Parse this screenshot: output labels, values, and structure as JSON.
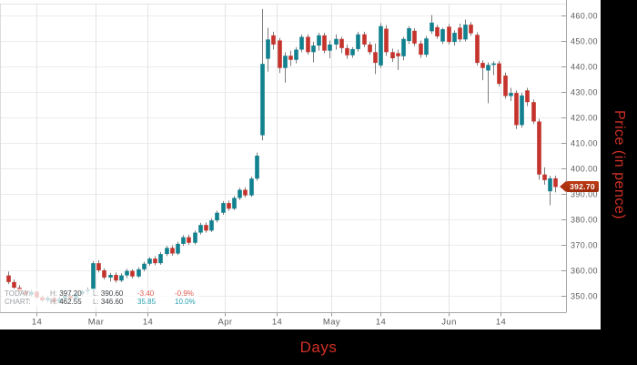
{
  "chart_data": {
    "type": "candlestick",
    "xlabel": "Days",
    "ylabel": "Price (in pence)",
    "ylim": [
      341.5,
      466
    ],
    "grid": true,
    "y_ticks": [
      350,
      360,
      370,
      380,
      390,
      400,
      410,
      420,
      430,
      440,
      450,
      460
    ],
    "x_ticks": [
      {
        "label": "14",
        "i": 5.0
      },
      {
        "label": "Mar",
        "i": 15.5
      },
      {
        "label": "14",
        "i": 24.7
      },
      {
        "label": "Apr",
        "i": 38.4
      },
      {
        "label": "14",
        "i": 47.6
      },
      {
        "label": "May",
        "i": 57.2
      },
      {
        "label": "14",
        "i": 66.0
      },
      {
        "label": "Jun",
        "i": 78.1
      },
      {
        "label": "14",
        "i": 87.3
      }
    ],
    "last_price": "392.70",
    "colors": {
      "up": "#12818f",
      "down": "#c5332d",
      "wick": "#7d7d7d",
      "axis_title": "#cf3126",
      "tag": "#b02f10"
    },
    "candles": [
      [
        358.0,
        359.5,
        354.6,
        355.4
      ],
      [
        355.4,
        356.4,
        352.4,
        353.2
      ],
      [
        353.2,
        354.2,
        351.0,
        351.8
      ],
      [
        351.8,
        352.6,
        349.8,
        350.4
      ],
      [
        350.4,
        352.4,
        349.6,
        351.6
      ],
      [
        351.6,
        352.2,
        348.8,
        349.4
      ],
      [
        349.4,
        350.2,
        347.6,
        348.2
      ],
      [
        348.2,
        350.0,
        347.2,
        349.2
      ],
      [
        349.2,
        349.8,
        346.6,
        347.4
      ],
      [
        347.4,
        349.8,
        347.0,
        349.0
      ],
      [
        349.0,
        350.6,
        348.2,
        350.0
      ],
      [
        350.0,
        350.8,
        348.4,
        349.0
      ],
      [
        349.0,
        351.4,
        348.6,
        350.8
      ],
      [
        350.8,
        352.4,
        350.0,
        351.8
      ],
      [
        351.8,
        353.2,
        350.6,
        352.4
      ],
      [
        352.4,
        363.6,
        351.8,
        362.8
      ],
      [
        362.8,
        364.0,
        359.2,
        360.0
      ],
      [
        360.0,
        360.8,
        356.4,
        357.2
      ],
      [
        357.2,
        359.0,
        355.6,
        358.2
      ],
      [
        358.2,
        359.2,
        355.2,
        356.0
      ],
      [
        356.0,
        358.8,
        355.4,
        358.0
      ],
      [
        358.0,
        360.6,
        357.0,
        359.8
      ],
      [
        359.8,
        360.4,
        356.8,
        357.6
      ],
      [
        357.6,
        361.2,
        357.0,
        360.4
      ],
      [
        360.4,
        363.4,
        359.6,
        362.6
      ],
      [
        362.6,
        365.2,
        361.8,
        364.6
      ],
      [
        364.6,
        365.6,
        362.0,
        362.8
      ],
      [
        362.8,
        367.2,
        362.2,
        366.4
      ],
      [
        366.4,
        369.6,
        365.6,
        368.8
      ],
      [
        368.8,
        369.8,
        365.8,
        366.6
      ],
      [
        366.6,
        371.2,
        366.0,
        370.4
      ],
      [
        370.4,
        373.8,
        369.6,
        373.0
      ],
      [
        373.0,
        374.0,
        370.0,
        370.8
      ],
      [
        370.8,
        375.6,
        370.2,
        374.8
      ],
      [
        374.8,
        378.6,
        374.0,
        377.8
      ],
      [
        377.8,
        378.8,
        374.8,
        375.6
      ],
      [
        375.6,
        380.4,
        375.0,
        379.6
      ],
      [
        379.6,
        383.4,
        378.8,
        382.6
      ],
      [
        382.6,
        387.2,
        381.8,
        386.4
      ],
      [
        386.4,
        387.4,
        383.4,
        384.2
      ],
      [
        384.2,
        389.2,
        383.6,
        388.4
      ],
      [
        388.4,
        392.4,
        387.6,
        391.6
      ],
      [
        391.6,
        392.6,
        388.6,
        389.4
      ],
      [
        389.4,
        396.8,
        388.8,
        396.0
      ],
      [
        396.0,
        406.2,
        395.2,
        405.0
      ],
      [
        413.0,
        462.55,
        411.0,
        441.0
      ],
      [
        443.0,
        455.2,
        438.0,
        450.6
      ],
      [
        452.2,
        453.6,
        446.6,
        448.6
      ],
      [
        450.2,
        451.2,
        437.4,
        439.4
      ],
      [
        439.4,
        445.6,
        433.6,
        444.2
      ],
      [
        444.2,
        446.2,
        440.2,
        442.6
      ],
      [
        442.6,
        447.6,
        441.2,
        446.6
      ],
      [
        446.6,
        452.6,
        445.6,
        451.6
      ],
      [
        451.6,
        452.6,
        444.6,
        445.6
      ],
      [
        445.6,
        449.6,
        441.6,
        448.2
      ],
      [
        448.2,
        453.2,
        446.2,
        452.2
      ],
      [
        452.2,
        453.2,
        445.2,
        446.2
      ],
      [
        446.2,
        450.2,
        443.2,
        448.6
      ],
      [
        448.6,
        452.6,
        446.6,
        450.8
      ],
      [
        450.8,
        451.6,
        445.2,
        447.2
      ],
      [
        447.2,
        448.6,
        443.0,
        444.4
      ],
      [
        444.4,
        447.6,
        443.4,
        446.8
      ],
      [
        446.8,
        453.6,
        445.8,
        452.6
      ],
      [
        452.6,
        453.6,
        447.6,
        448.6
      ],
      [
        448.6,
        449.6,
        444.6,
        445.6
      ],
      [
        445.6,
        449.0,
        437.0,
        441.4
      ],
      [
        440.4,
        457.0,
        439.4,
        455.8
      ],
      [
        454.8,
        456.2,
        444.2,
        445.6
      ],
      [
        445.6,
        447.0,
        441.8,
        443.2
      ],
      [
        445.2,
        446.6,
        438.6,
        444.0
      ],
      [
        444.0,
        451.6,
        442.4,
        450.8
      ],
      [
        450.0,
        455.8,
        448.8,
        455.0
      ],
      [
        454.0,
        455.0,
        448.0,
        449.0
      ],
      [
        449.0,
        450.2,
        443.4,
        444.6
      ],
      [
        444.6,
        452.0,
        443.6,
        451.0
      ],
      [
        453.8,
        460.2,
        452.8,
        457.2
      ],
      [
        455.4,
        456.4,
        450.8,
        451.8
      ],
      [
        449.8,
        455.2,
        448.8,
        454.6
      ],
      [
        455.6,
        456.6,
        448.6,
        449.6
      ],
      [
        449.6,
        454.2,
        448.2,
        453.2
      ],
      [
        455.2,
        456.8,
        449.6,
        450.6
      ],
      [
        450.6,
        458.4,
        449.8,
        456.4
      ],
      [
        456.4,
        457.4,
        452.0,
        453.0
      ],
      [
        452.4,
        453.4,
        440.4,
        441.4
      ],
      [
        441.4,
        442.4,
        434.6,
        439.4
      ],
      [
        438.4,
        441.6,
        425.6,
        440.6
      ],
      [
        440.6,
        442.0,
        436.6,
        441.2
      ],
      [
        441.2,
        442.2,
        432.2,
        433.2
      ],
      [
        436.4,
        437.6,
        427.4,
        428.4
      ],
      [
        428.4,
        431.6,
        426.4,
        429.6
      ],
      [
        429.6,
        430.6,
        415.4,
        417.0
      ],
      [
        417.0,
        429.6,
        416.0,
        428.6
      ],
      [
        430.6,
        431.6,
        424.4,
        426.0
      ],
      [
        426.0,
        427.0,
        417.4,
        418.4
      ],
      [
        418.4,
        419.4,
        395.6,
        397.6
      ],
      [
        397.6,
        400.4,
        393.6,
        395.4
      ],
      [
        391.0,
        397.0,
        385.6,
        396.1
      ],
      [
        396.1,
        397.2,
        390.6,
        392.7
      ]
    ]
  },
  "legend": {
    "rows": [
      {
        "name": "TODAY:",
        "high_label": "H:",
        "high": "397.20",
        "low_label": "L:",
        "low": "390.60",
        "change": "-3.40",
        "change_pct": "-0.9%",
        "direction": "down"
      },
      {
        "name": "CHART:",
        "high_label": "H:",
        "high": "462.55",
        "low_label": "L:",
        "low": "346.60",
        "change": "35.85",
        "change_pct": "10.0%",
        "direction": "up"
      }
    ]
  }
}
